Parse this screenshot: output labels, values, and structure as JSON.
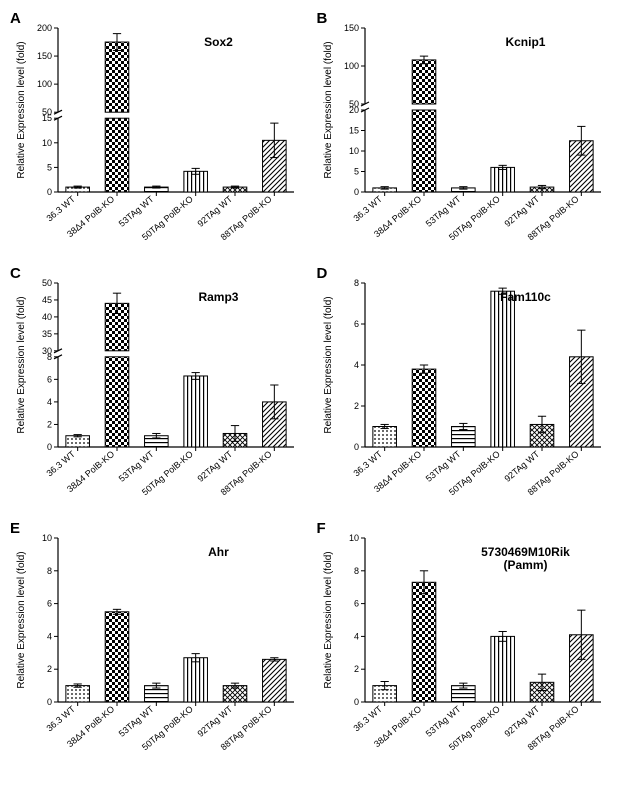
{
  "figure_width": 618,
  "figure_height": 796,
  "panel_layout": {
    "rows": 3,
    "cols": 2
  },
  "categories": [
    "36.3 WT",
    "38Δ4 PolB-KO",
    "53TAg WT",
    "50TAg PolB-KO",
    "92TAg WT",
    "88TAg PolB-KO"
  ],
  "global_style": {
    "background_color": "#ffffff",
    "axis_color": "#000000",
    "tick_color": "#000000",
    "text_color": "#000000",
    "panel_letter_fontsize": 15,
    "panel_letter_fontweight": "bold",
    "title_fontsize": 12,
    "title_fontweight": "bold",
    "ylabel_fontsize": 10,
    "ylabel_text": "Relative Expression level (fold)",
    "xlabel_fontsize": 9,
    "xlabel_rotation_deg": -40,
    "bar_border_color": "#000000",
    "bar_border_width": 1,
    "bar_width_ratio": 0.6,
    "errorbar_color": "#000000",
    "errorbar_width": 1,
    "errorbar_cap_ratio": 0.35
  },
  "patterns": [
    {
      "name": "dots",
      "type": "dots",
      "color": "#000000"
    },
    {
      "name": "checker",
      "type": "checker",
      "color": "#000000"
    },
    {
      "name": "hstripes",
      "type": "hstripes",
      "color": "#000000"
    },
    {
      "name": "vstripes",
      "type": "vstripes",
      "color": "#000000"
    },
    {
      "name": "cross",
      "type": "crosshatch",
      "color": "#000000"
    },
    {
      "name": "diag",
      "type": "diag",
      "color": "#000000"
    }
  ],
  "panels": [
    {
      "letter": "A",
      "title": "Sox2",
      "axis_break": {
        "lower_max": 15,
        "upper_min": 50,
        "upper_max": 200,
        "lower_fraction": 0.45
      },
      "yticks_lower": [
        0,
        5,
        10,
        15
      ],
      "yticks_upper": [
        50,
        100,
        150,
        200
      ],
      "bars": [
        {
          "value": 1.0,
          "err": 0.2
        },
        {
          "value": 175,
          "err": 15
        },
        {
          "value": 1.0,
          "err": 0.2
        },
        {
          "value": 4.2,
          "err": 0.6
        },
        {
          "value": 1.0,
          "err": 0.2
        },
        {
          "value": 10.5,
          "err": 3.5
        }
      ]
    },
    {
      "letter": "B",
      "title": "Kcnip1",
      "axis_break": {
        "lower_max": 20,
        "upper_min": 50,
        "upper_max": 150,
        "lower_fraction": 0.5
      },
      "yticks_lower": [
        0,
        5,
        10,
        15,
        20
      ],
      "yticks_upper": [
        50,
        100,
        150
      ],
      "bars": [
        {
          "value": 1.0,
          "err": 0.3
        },
        {
          "value": 108,
          "err": 5
        },
        {
          "value": 1.0,
          "err": 0.3
        },
        {
          "value": 6.0,
          "err": 0.5
        },
        {
          "value": 1.2,
          "err": 0.4
        },
        {
          "value": 12.5,
          "err": 3.5
        }
      ]
    },
    {
      "letter": "C",
      "title": "Ramp3",
      "axis_break": {
        "lower_max": 8,
        "upper_min": 30,
        "upper_max": 50,
        "lower_fraction": 0.55
      },
      "yticks_lower": [
        0,
        2,
        4,
        6,
        8
      ],
      "yticks_upper": [
        30,
        35,
        40,
        45,
        50
      ],
      "bars": [
        {
          "value": 1.0,
          "err": 0.1
        },
        {
          "value": 44,
          "err": 3
        },
        {
          "value": 1.0,
          "err": 0.2
        },
        {
          "value": 6.3,
          "err": 0.3
        },
        {
          "value": 1.2,
          "err": 0.7
        },
        {
          "value": 4.0,
          "err": 1.5
        }
      ]
    },
    {
      "letter": "D",
      "title": "Fam110c",
      "axis_break": null,
      "ylim": [
        0,
        8
      ],
      "yticks": [
        0,
        2,
        4,
        6,
        8
      ],
      "bars": [
        {
          "value": 1.0,
          "err": 0.1
        },
        {
          "value": 3.8,
          "err": 0.2
        },
        {
          "value": 1.0,
          "err": 0.15
        },
        {
          "value": 7.6,
          "err": 0.15
        },
        {
          "value": 1.1,
          "err": 0.4
        },
        {
          "value": 4.4,
          "err": 1.3
        }
      ]
    },
    {
      "letter": "E",
      "title": "Ahr",
      "axis_break": null,
      "ylim": [
        0,
        10
      ],
      "yticks": [
        0,
        2,
        4,
        6,
        8,
        10
      ],
      "bars": [
        {
          "value": 1.0,
          "err": 0.1
        },
        {
          "value": 5.5,
          "err": 0.15
        },
        {
          "value": 1.0,
          "err": 0.15
        },
        {
          "value": 2.7,
          "err": 0.25
        },
        {
          "value": 1.0,
          "err": 0.15
        },
        {
          "value": 2.6,
          "err": 0.1
        }
      ]
    },
    {
      "letter": "F",
      "title": "5730469M10Rik",
      "subtitle": "(Pamm)",
      "axis_break": null,
      "ylim": [
        0,
        10
      ],
      "yticks": [
        0,
        2,
        4,
        6,
        8,
        10
      ],
      "bars": [
        {
          "value": 1.0,
          "err": 0.25
        },
        {
          "value": 7.3,
          "err": 0.7
        },
        {
          "value": 1.0,
          "err": 0.15
        },
        {
          "value": 4.0,
          "err": 0.3
        },
        {
          "value": 1.2,
          "err": 0.5
        },
        {
          "value": 4.1,
          "err": 1.5
        }
      ]
    }
  ]
}
